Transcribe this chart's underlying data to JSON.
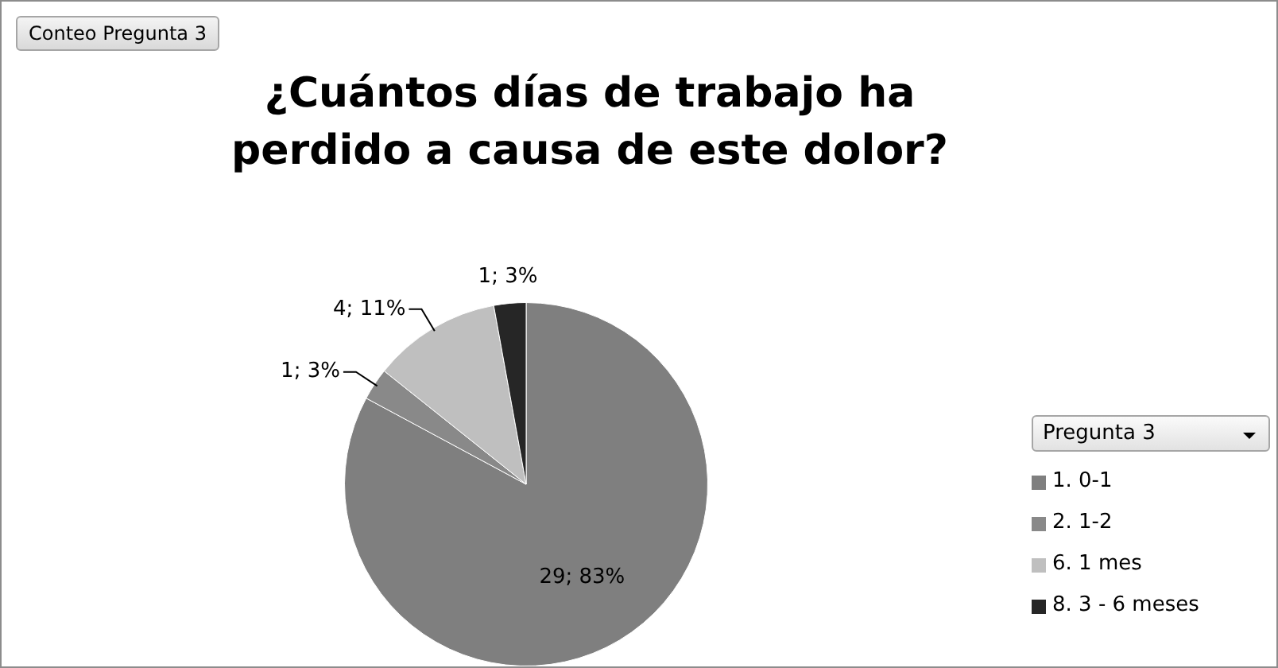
{
  "chart_data": {
    "type": "pie",
    "title": "¿Cuántos días de trabajo ha perdido a causa de este dolor?",
    "annotations": [
      "Conteo Pregunta 3"
    ],
    "legend_title": "Pregunta 3",
    "legend": "right",
    "categories": [
      "1. 0-1",
      "2. 1-2",
      "6. 1 mes",
      "8. 3 - 6 meses"
    ],
    "values": [
      29,
      1,
      4,
      1
    ],
    "colors": [
      "#7f7f7f",
      "#898989",
      "#bfbfbf",
      "#262626"
    ],
    "value_labels": [
      "29; 83%",
      "1; 3%",
      "4; 11%",
      "1; 3%"
    ]
  }
}
